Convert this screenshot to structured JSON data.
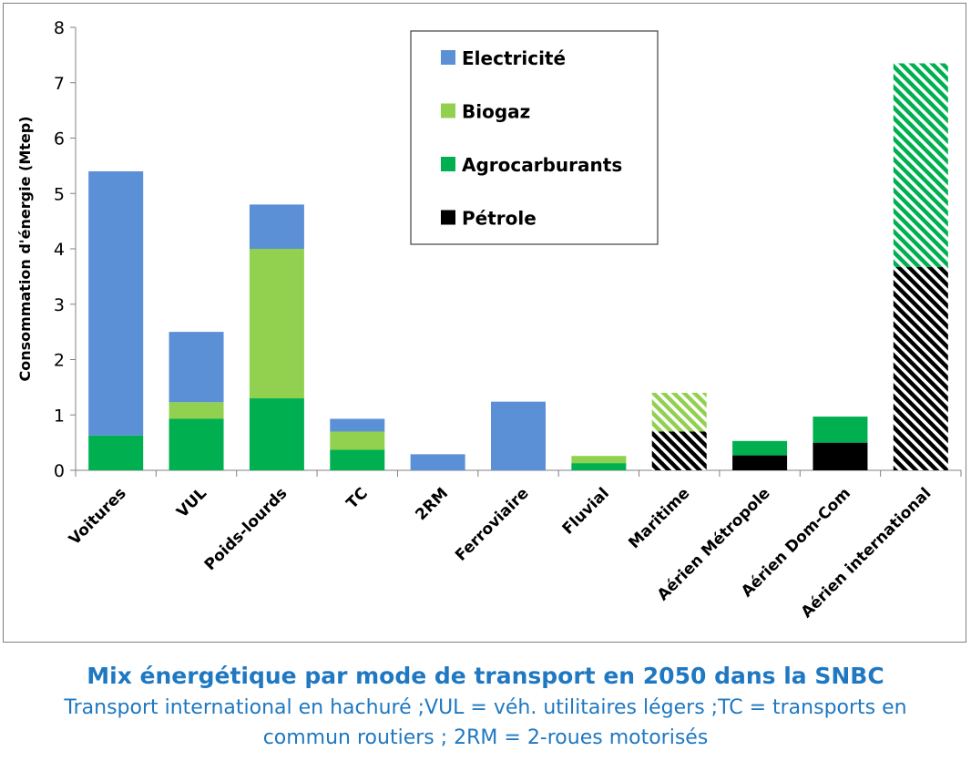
{
  "chart_data": {
    "type": "bar",
    "stacked": true,
    "categories": [
      "Voitures",
      "VUL",
      "Poids-lourds",
      "TC",
      "2RM",
      "Ferroviaire",
      "Fluvial",
      "Maritime",
      "Aérien Métropole",
      "Aérien Dom-Com",
      "Aérien international"
    ],
    "hatched_categories": [
      "Maritime",
      "Aérien international"
    ],
    "series": [
      {
        "name": "Pétrole",
        "color": "#000000",
        "values": [
          0,
          0,
          0,
          0,
          0,
          0,
          0,
          0.7,
          0.27,
          0.5,
          3.67
        ]
      },
      {
        "name": "Agrocarburants",
        "color": "#00b050",
        "values": [
          0.63,
          0.93,
          1.3,
          0.37,
          0,
          0,
          0.13,
          0,
          0.26,
          0.47,
          3.68
        ]
      },
      {
        "name": "Biogaz",
        "color": "#92d050",
        "values": [
          0,
          0.3,
          2.7,
          0.33,
          0,
          0,
          0.13,
          0.7,
          0,
          0,
          0
        ]
      },
      {
        "name": "Electricité",
        "color": "#5b8fd6",
        "values": [
          4.77,
          1.27,
          0.8,
          0.23,
          0.29,
          1.24,
          0,
          0,
          0,
          0,
          0
        ]
      }
    ],
    "legend_order": [
      "Electricité",
      "Biogaz",
      "Agrocarburants",
      "Pétrole"
    ],
    "legend_position": "top-center",
    "ylabel": "Consommation d'énergie (Mtep)",
    "ylim": [
      0,
      8
    ],
    "yticks": [
      "0",
      "1",
      "2",
      "3",
      "4",
      "5",
      "6",
      "7",
      "8"
    ],
    "grid": false
  },
  "caption": {
    "title": "Mix énergétique par mode de transport en 2050 dans la SNBC",
    "line1": "Transport international en hachuré ;VUL = véh. utilitaires légers ;TC = transports en",
    "line2": "commun routiers ; 2RM = 2-roues motorisés"
  }
}
